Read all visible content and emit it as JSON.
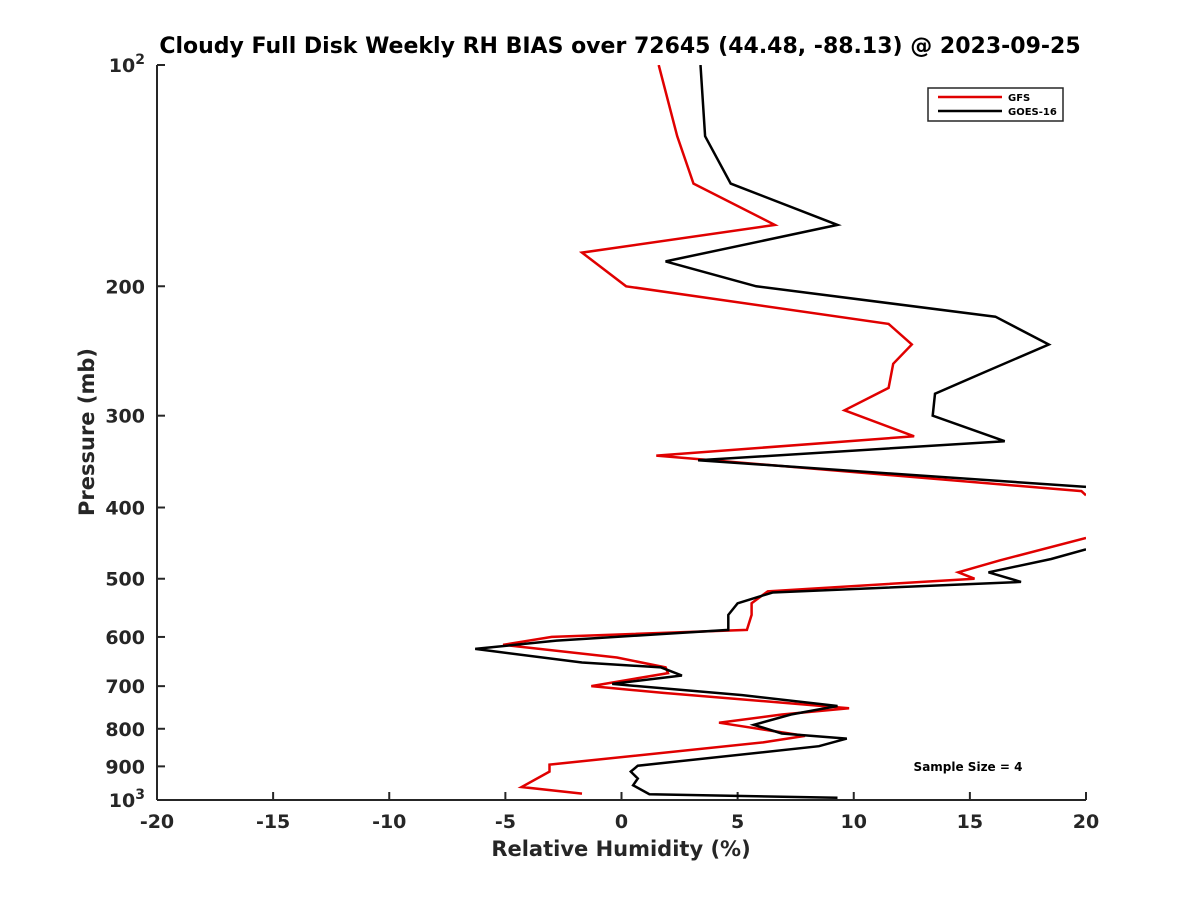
{
  "chart_data": {
    "type": "line",
    "title": "Cloudy Full Disk Weekly RH BIAS over 72645 (44.48, -88.13) @ 2023-09-25",
    "xlabel": "Relative Humidity (%)",
    "ylabel": "Pressure (mb)",
    "xlim": [
      -20,
      20
    ],
    "ylim": [
      100,
      1000
    ],
    "y_scale": "log",
    "y_reversed": true,
    "grid": false,
    "legend_position": "top-right",
    "x_ticks": [
      -20,
      -15,
      -10,
      -5,
      0,
      5,
      10,
      15,
      20
    ],
    "x_tick_labels": [
      "-20",
      "-15",
      "-10",
      "-5",
      "0",
      "5",
      "10",
      "15",
      "20"
    ],
    "y_ticks": [
      100,
      200,
      300,
      400,
      500,
      600,
      700,
      800,
      900,
      1000
    ],
    "y_tick_labels": [
      "10^2",
      "200",
      "300",
      "400",
      "500",
      "600",
      "700",
      "800",
      "900",
      "10^3"
    ],
    "series": [
      {
        "name": "GFS",
        "color": "#e00000",
        "points": [
          [
            1.6,
            100
          ],
          [
            2.4,
            125
          ],
          [
            3.1,
            145
          ],
          [
            6.6,
            165
          ],
          [
            -1.7,
            180
          ],
          [
            0.2,
            200
          ],
          [
            11.5,
            225
          ],
          [
            12.5,
            240
          ],
          [
            11.7,
            255
          ],
          [
            11.5,
            275
          ],
          [
            9.6,
            295
          ],
          [
            12.6,
            320
          ],
          [
            1.5,
            340
          ],
          [
            19.8,
            380
          ],
          [
            20.0,
            385
          ],
          [
            null,
            null
          ],
          [
            20.0,
            440
          ],
          [
            16.3,
            472
          ],
          [
            14.5,
            490
          ],
          [
            15.2,
            500
          ],
          [
            6.3,
            520
          ],
          [
            5.6,
            540
          ],
          [
            5.6,
            560
          ],
          [
            5.4,
            587
          ],
          [
            -3.0,
            600
          ],
          [
            -5.1,
            615
          ],
          [
            -0.2,
            640
          ],
          [
            1.9,
            660
          ],
          [
            2.0,
            672
          ],
          [
            -1.3,
            700
          ],
          [
            1.8,
            715
          ],
          [
            9.8,
            750
          ],
          [
            6.9,
            765
          ],
          [
            4.2,
            785
          ],
          [
            7.9,
            818
          ],
          [
            6.1,
            835
          ],
          [
            -3.1,
            895
          ],
          [
            -3.1,
            915
          ],
          [
            -4.3,
            960
          ],
          [
            -1.7,
            980
          ]
        ]
      },
      {
        "name": "GOES-16",
        "color": "#000000",
        "points": [
          [
            3.4,
            100
          ],
          [
            3.6,
            125
          ],
          [
            4.7,
            145
          ],
          [
            9.3,
            165
          ],
          [
            1.9,
            185
          ],
          [
            5.8,
            200
          ],
          [
            16.1,
            220
          ],
          [
            18.4,
            240
          ],
          [
            15.6,
            262
          ],
          [
            13.5,
            280
          ],
          [
            13.4,
            300
          ],
          [
            16.5,
            325
          ],
          [
            3.3,
            345
          ],
          [
            20.0,
            375
          ],
          [
            null,
            null
          ],
          [
            20.0,
            456
          ],
          [
            18.5,
            470
          ],
          [
            15.8,
            490
          ],
          [
            17.2,
            505
          ],
          [
            6.5,
            522
          ],
          [
            5.0,
            540
          ],
          [
            4.6,
            560
          ],
          [
            4.6,
            587
          ],
          [
            -2.8,
            607
          ],
          [
            -6.3,
            623
          ],
          [
            -1.7,
            650
          ],
          [
            1.7,
            660
          ],
          [
            2.6,
            677
          ],
          [
            -0.4,
            695
          ],
          [
            5.2,
            720
          ],
          [
            9.3,
            745
          ],
          [
            7.3,
            765
          ],
          [
            5.7,
            790
          ],
          [
            6.9,
            812
          ],
          [
            9.7,
            825
          ],
          [
            8.5,
            845
          ],
          [
            0.7,
            898
          ],
          [
            0.4,
            915
          ],
          [
            0.7,
            935
          ],
          [
            0.5,
            955
          ],
          [
            1.2,
            982
          ],
          [
            9.3,
            993
          ]
        ]
      }
    ],
    "annotation": "Sample Size = 4"
  }
}
